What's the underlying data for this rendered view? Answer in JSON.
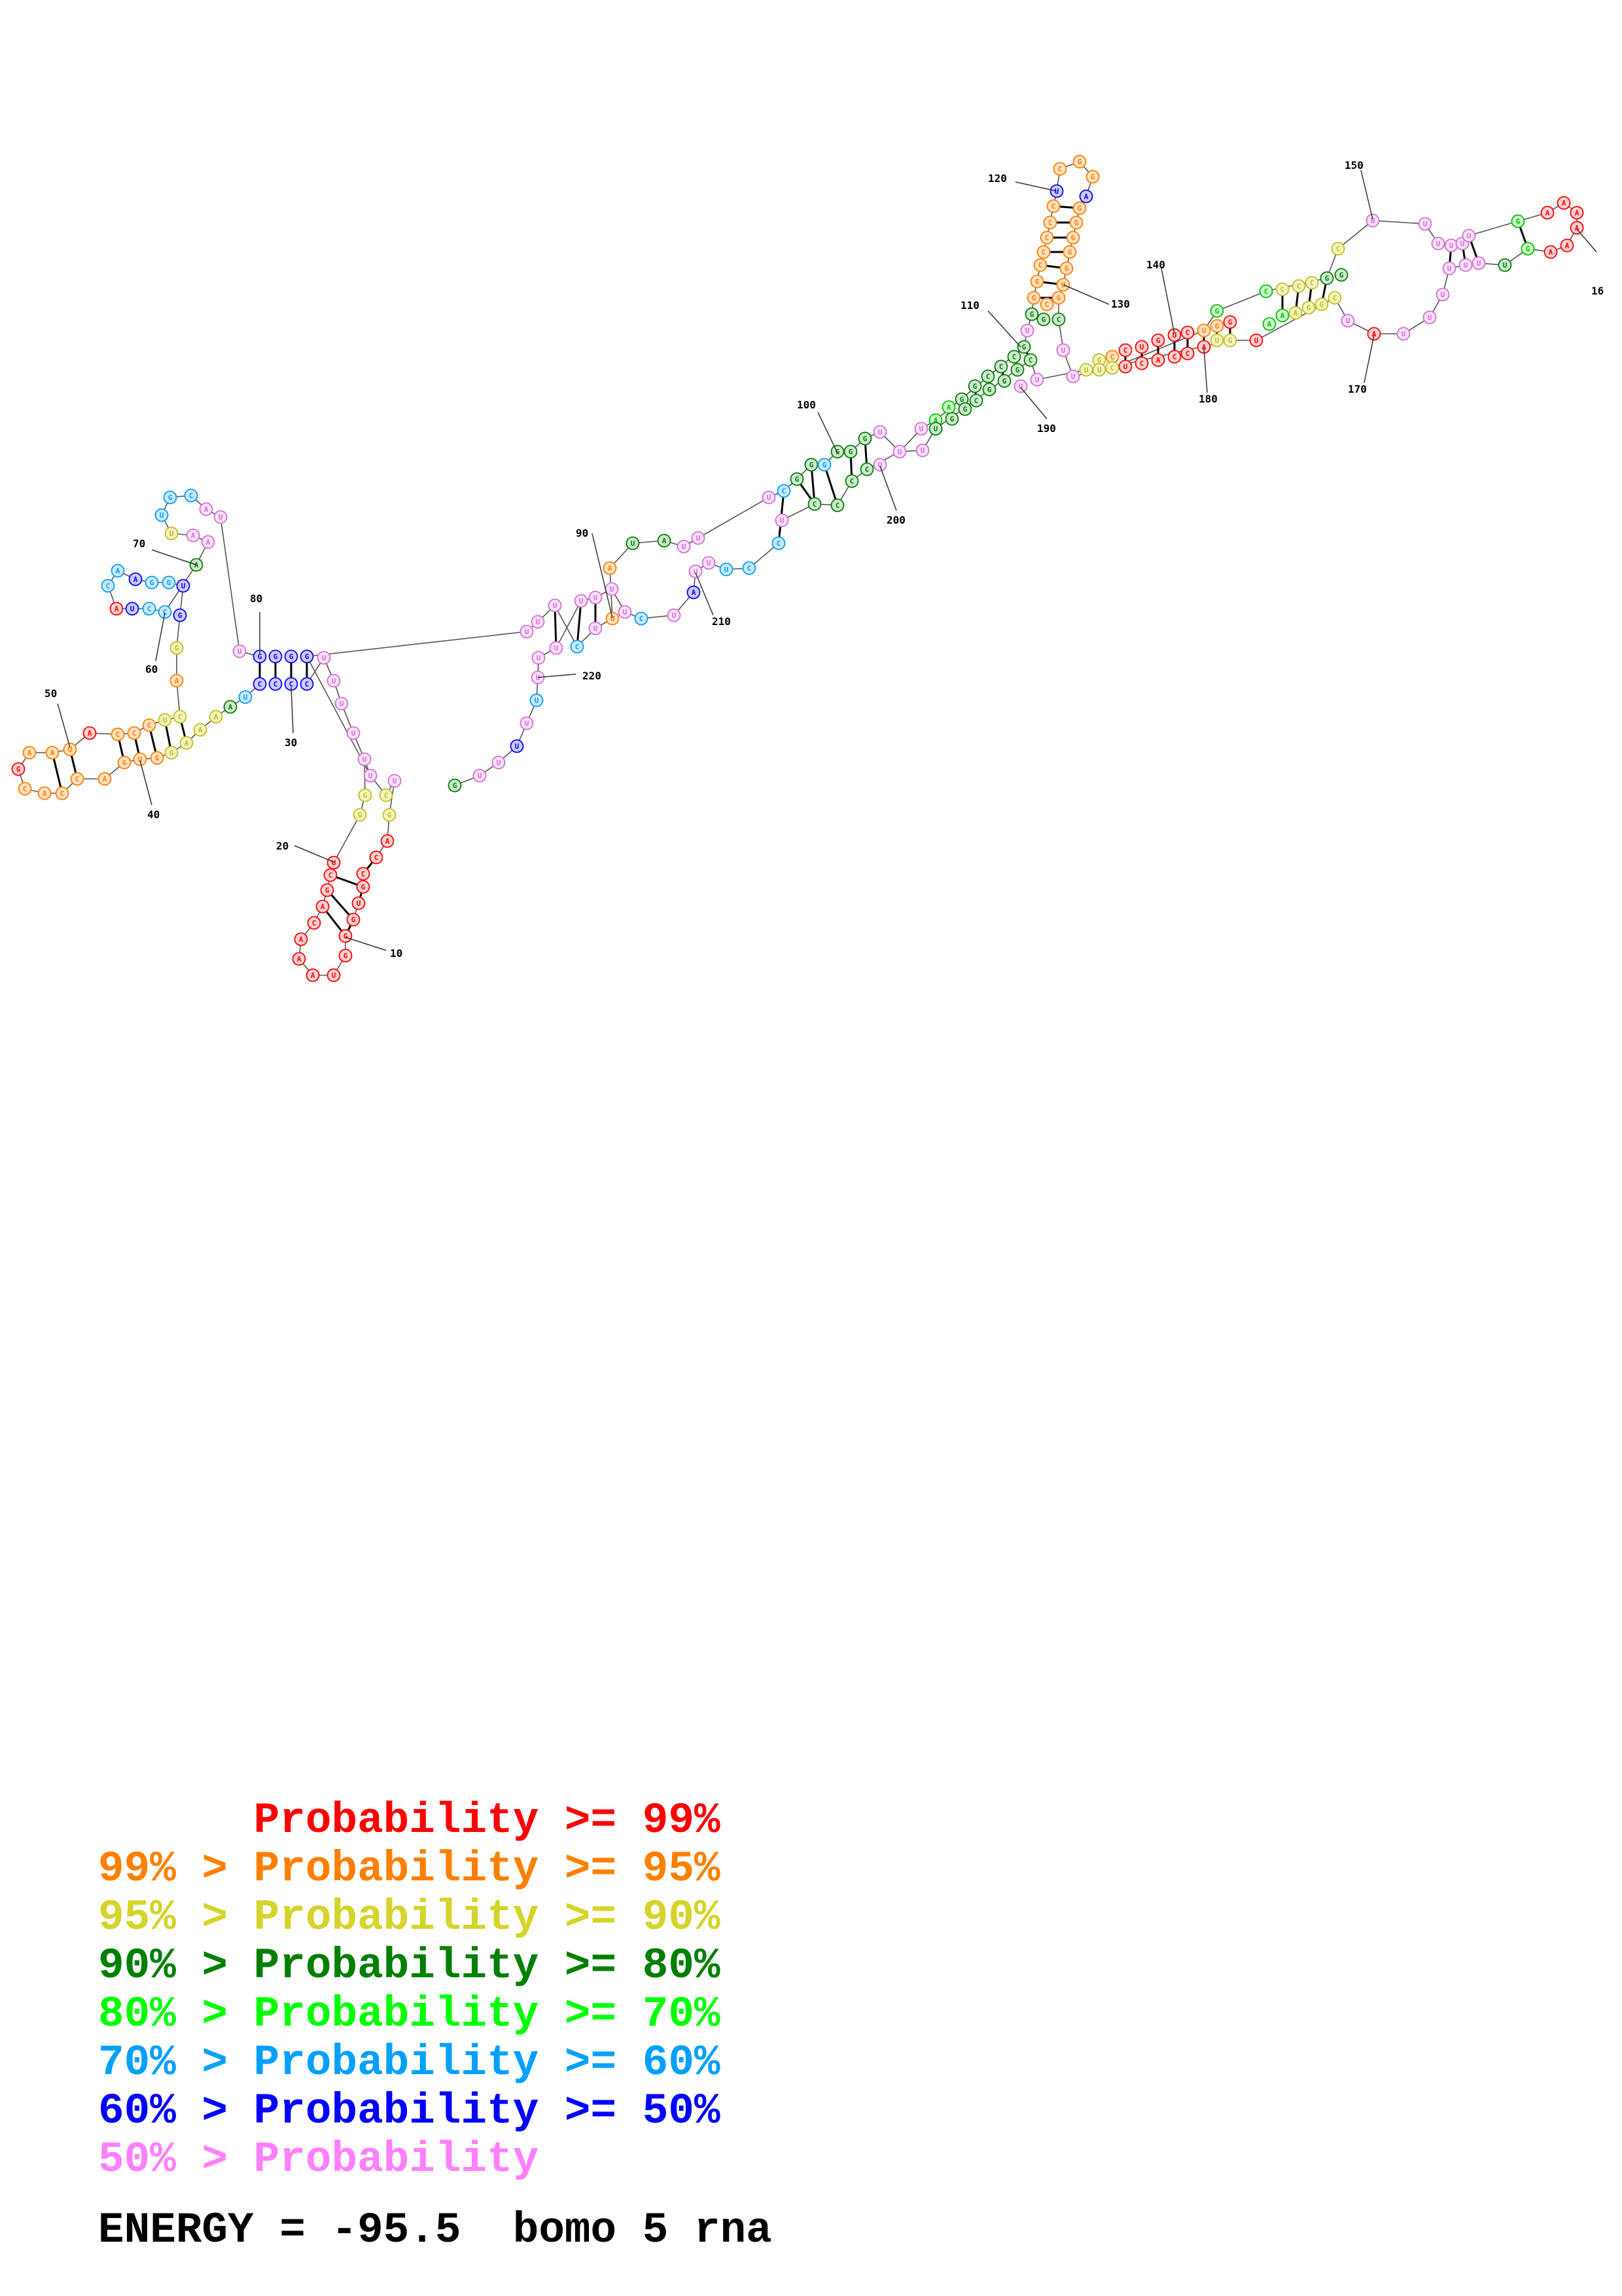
{
  "legend": {
    "rows": [
      {
        "prefix": "      ",
        "label": "Probability >= 99%",
        "color": "#ff0000"
      },
      {
        "prefix": "99% > ",
        "label": "Probability >= 95%",
        "color": "#ff7f00"
      },
      {
        "prefix": "95% > ",
        "label": "Probability >= 90%",
        "color": "#d4d42a"
      },
      {
        "prefix": "90% > ",
        "label": "Probability >= 80%",
        "color": "#007f00"
      },
      {
        "prefix": "80% > ",
        "label": "Probability >= 70%",
        "color": "#00ff00"
      },
      {
        "prefix": "70% > ",
        "label": "Probability >= 60%",
        "color": "#00a0ff"
      },
      {
        "prefix": "60% > ",
        "label": "Probability >= 50%",
        "color": "#0000ff"
      },
      {
        "prefix": "50% > ",
        "label": "Probability",
        "color": "#ff80ff"
      }
    ]
  },
  "energy": {
    "label": "ENERGY = -95.5",
    "structure_name": "bomo 5 rna"
  },
  "structure": {
    "nucleotide_fill": {
      "red": "#ffd0d0",
      "orange": "#ffe0bf",
      "yellow": "#f3f3c0",
      "dkgreen": "#cfe8cf",
      "green": "#ccffcc",
      "cyan": "#cce8ff",
      "blue": "#ccccff",
      "pink": "#ffe0ff"
    },
    "nucleotide_stroke": {
      "red": "#ff0000",
      "orange": "#ff7f00",
      "yellow": "#c0c020",
      "dkgreen": "#007f00",
      "green": "#00c000",
      "cyan": "#00a0ff",
      "blue": "#0000ff",
      "pink": "#d070d0"
    },
    "position_labels": [
      {
        "text": "10"
      },
      {
        "text": "20"
      },
      {
        "text": "30"
      },
      {
        "text": "40"
      },
      {
        "text": "50"
      },
      {
        "text": "60"
      },
      {
        "text": "70"
      },
      {
        "text": "80"
      },
      {
        "text": "90"
      },
      {
        "text": "100"
      },
      {
        "text": "110"
      },
      {
        "text": "120"
      },
      {
        "text": "130"
      },
      {
        "text": "140"
      },
      {
        "text": "150"
      },
      {
        "text": "16"
      },
      {
        "text": "170"
      },
      {
        "text": "180"
      },
      {
        "text": "190"
      },
      {
        "text": "200"
      },
      {
        "text": "210"
      },
      {
        "text": "220"
      }
    ]
  }
}
